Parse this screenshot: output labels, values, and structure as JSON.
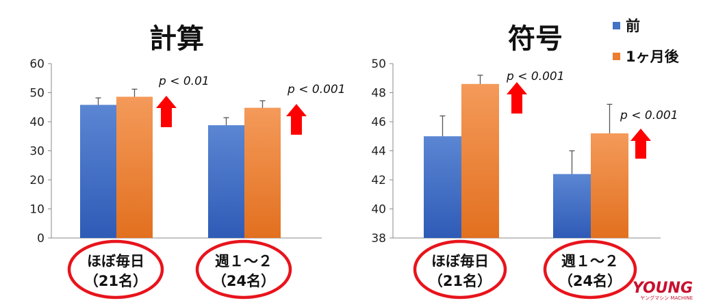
{
  "chart_data": [
    {
      "type": "bar",
      "title": "計算",
      "ylim": [
        0,
        60
      ],
      "yticks": [
        0,
        10,
        20,
        30,
        40,
        50,
        60
      ],
      "categories": [
        {
          "line1": "ほぼ毎日",
          "line2": "（21名）"
        },
        {
          "line1": "週１～２",
          "line2": "（24名）"
        }
      ],
      "series": [
        {
          "name": "前",
          "color": "#4472C4",
          "values": [
            45.8,
            38.8
          ],
          "errors": [
            2.4,
            2.6
          ]
        },
        {
          "name": "1ヶ月後",
          "color": "#ED7D31",
          "values": [
            48.6,
            44.8
          ],
          "errors": [
            2.6,
            2.4
          ]
        }
      ],
      "annotations": [
        "p < 0.01",
        "p < 0.001"
      ]
    },
    {
      "type": "bar",
      "title": "符号",
      "ylim": [
        38,
        50
      ],
      "yticks": [
        38,
        40,
        42,
        44,
        46,
        48,
        50
      ],
      "categories": [
        {
          "line1": "ほぼ毎日",
          "line2": "（21名）"
        },
        {
          "line1": "週１～２",
          "line2": "（24名）"
        }
      ],
      "series": [
        {
          "name": "前",
          "color": "#4472C4",
          "values": [
            45.0,
            42.4
          ],
          "errors": [
            1.4,
            1.6
          ]
        },
        {
          "name": "1ヶ月後",
          "color": "#ED7D31",
          "values": [
            48.6,
            45.2
          ],
          "errors": [
            0.6,
            2.0
          ]
        }
      ],
      "annotations": [
        "p < 0.001",
        "p < 0.001"
      ]
    }
  ],
  "legend": {
    "position": "top-right",
    "items": [
      {
        "label": "前",
        "color": "#4472C4"
      },
      {
        "label": "1ヶ月後",
        "color": "#ED7D31"
      }
    ]
  },
  "colors": {
    "arrow": "#FF0000",
    "circle": "#E8141C"
  },
  "watermark": {
    "main": "YOUNG",
    "sub": "ヤングマシン MACHINE"
  }
}
